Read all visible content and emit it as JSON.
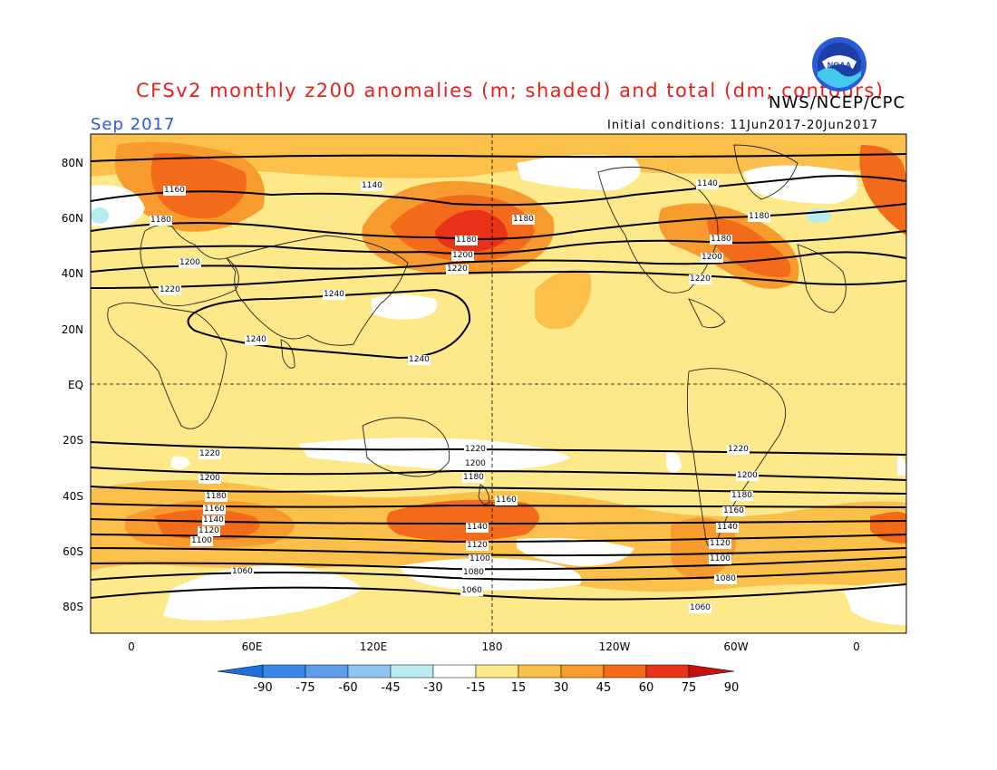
{
  "header": {
    "title": "CFSv2 monthly z200 anomalies (m; shaded) and total (dm; contours)",
    "agency": "NWS/NCEP/CPC",
    "month": "Sep 2017",
    "initial_conditions": "Initial conditions: 11Jun2017-20Jun2017",
    "logo_text": "NOAA"
  },
  "axes": {
    "lat_labels": [
      "80N",
      "60N",
      "40N",
      "20N",
      "EQ",
      "20S",
      "40S",
      "60S",
      "80S"
    ],
    "lon_labels": [
      "0",
      "60E",
      "120E",
      "180",
      "120W",
      "60W",
      "0"
    ]
  },
  "colorbar": {
    "labels": [
      "-90",
      "-75",
      "-60",
      "-45",
      "-30",
      "-15",
      "15",
      "30",
      "45",
      "60",
      "75",
      "90"
    ],
    "colors": [
      "#1e6fe0",
      "#3b86e6",
      "#5c9eea",
      "#8fc5ef",
      "#b9ecf0",
      "#ffffff",
      "#fde88a",
      "#fbc04a",
      "#f79b2e",
      "#f36a1a",
      "#e8321a",
      "#c4120e"
    ]
  },
  "contour_labels": [
    "1060",
    "1080",
    "1100",
    "1120",
    "1140",
    "1160",
    "1180",
    "1200",
    "1220",
    "1240"
  ],
  "colors": {
    "background_anomaly": "#fde88a",
    "title": "#e8201a",
    "month": "#3355dd"
  }
}
